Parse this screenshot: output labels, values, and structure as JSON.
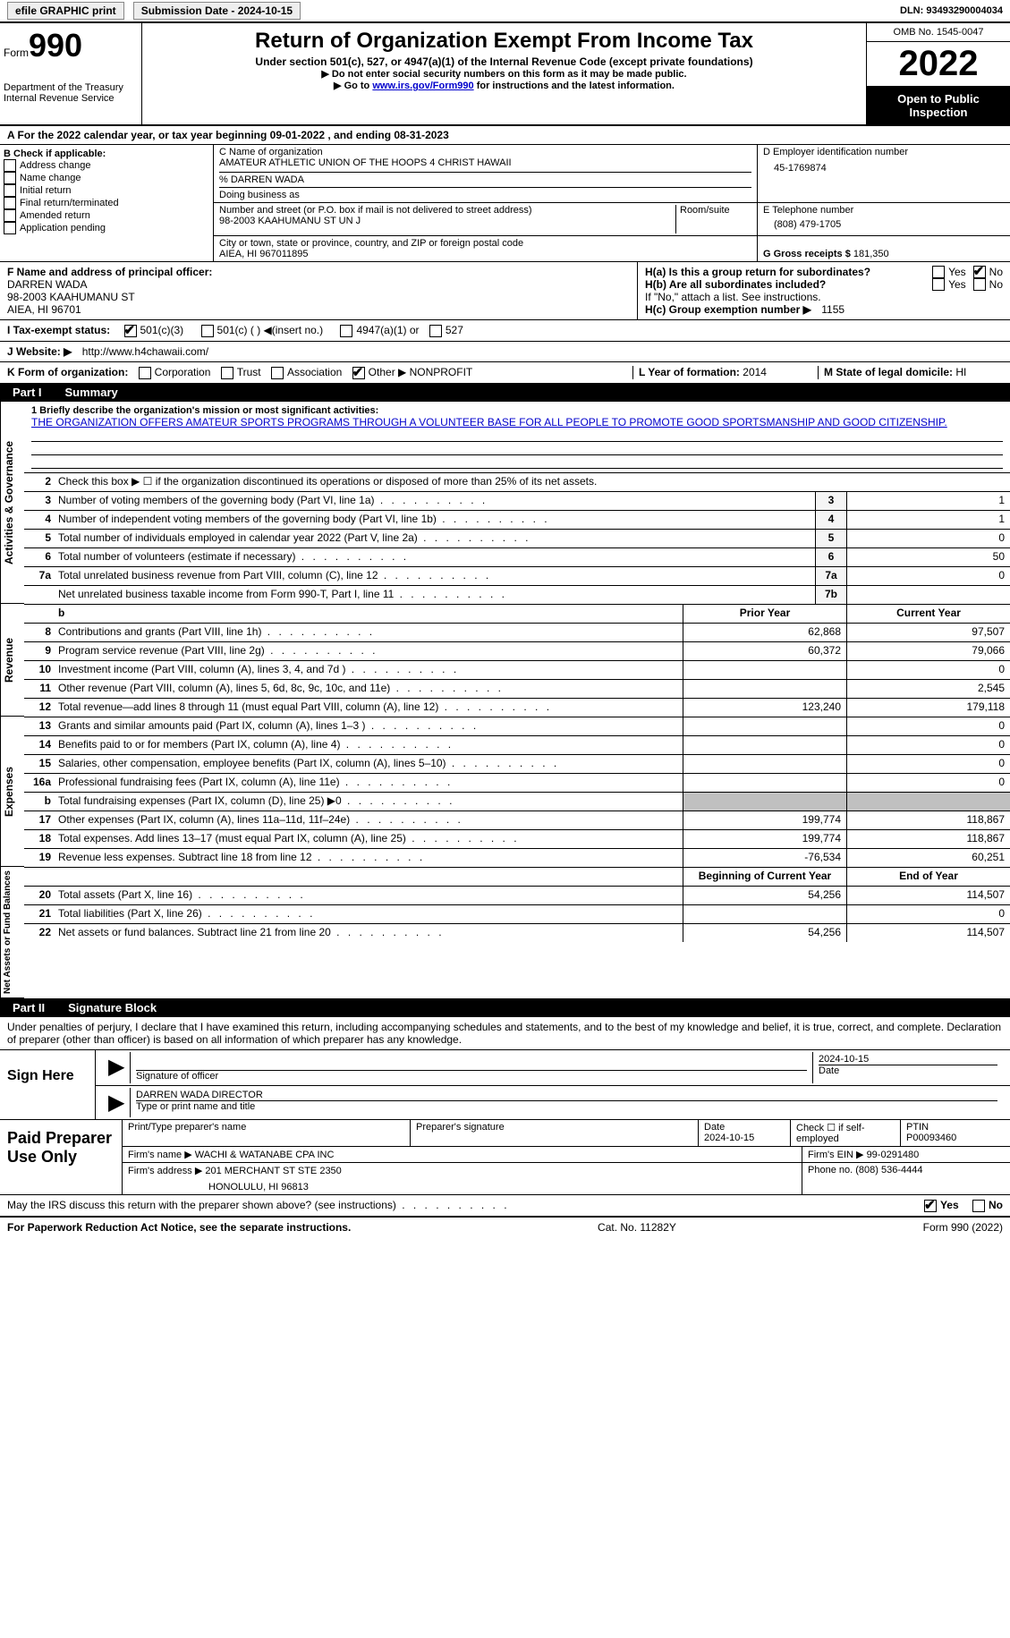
{
  "top": {
    "efile": "efile GRAPHIC print",
    "sub_label": "Submission Date - 2024-10-15",
    "dln": "DLN: 93493290004034"
  },
  "header": {
    "form_label": "Form",
    "form_num": "990",
    "dept": "Department of the Treasury",
    "irs": "Internal Revenue Service",
    "title": "Return of Organization Exempt From Income Tax",
    "sub": "Under section 501(c), 527, or 4947(a)(1) of the Internal Revenue Code (except private foundations)",
    "note1": "▶ Do not enter social security numbers on this form as it may be made public.",
    "note2_pre": "▶ Go to ",
    "note2_link": "www.irs.gov/Form990",
    "note2_post": " for instructions and the latest information.",
    "omb": "OMB No. 1545-0047",
    "year": "2022",
    "open": "Open to Public Inspection"
  },
  "row_a": "A For the 2022 calendar year, or tax year beginning 09-01-2022    , and ending 08-31-2023",
  "col_b": {
    "label": "B Check if applicable:",
    "opts": [
      "Address change",
      "Name change",
      "Initial return",
      "Final return/terminated",
      "Amended return",
      "Application pending"
    ]
  },
  "col_c": {
    "name_label": "C Name of organization",
    "name": "AMATEUR ATHLETIC UNION OF THE HOOPS 4 CHRIST HAWAII",
    "care_of": "% DARREN WADA",
    "dba_label": "Doing business as",
    "addr_label": "Number and street (or P.O. box if mail is not delivered to street address)",
    "room_label": "Room/suite",
    "addr": "98-2003 KAAHUMANU ST UN J",
    "city_label": "City or town, state or province, country, and ZIP or foreign postal code",
    "city": "AIEA, HI  967011895"
  },
  "col_d": {
    "ein_label": "D Employer identification number",
    "ein": "45-1769874",
    "tel_label": "E Telephone number",
    "tel": "(808) 479-1705",
    "gross_label": "G Gross receipts $",
    "gross": "181,350"
  },
  "f": {
    "label": "F  Name and address of principal officer:",
    "name": "DARREN WADA",
    "addr": "98-2003 KAAHUMANU ST",
    "city": "AIEA, HI  96701"
  },
  "h": {
    "ha": "H(a)  Is this a group return for subordinates?",
    "hb": "H(b)  Are all subordinates included?",
    "hb_note": "If \"No,\" attach a list. See instructions.",
    "hc": "H(c)  Group exemption number ▶",
    "hc_val": "1155"
  },
  "i": {
    "label": "I   Tax-exempt status:",
    "o1": "501(c)(3)",
    "o2": "501(c) (   ) ◀(insert no.)",
    "o3": "4947(a)(1) or",
    "o4": "527"
  },
  "j": {
    "label": "J   Website: ▶",
    "url": "http://www.h4chawaii.com/"
  },
  "k": {
    "label": "K Form of organization:",
    "opts": [
      "Corporation",
      "Trust",
      "Association"
    ],
    "other_label": "Other ▶",
    "other_val": "NONPROFIT"
  },
  "l": {
    "label": "L Year of formation:",
    "val": "2014"
  },
  "m": {
    "label": "M State of legal domicile:",
    "val": "HI"
  },
  "part1": {
    "label": "Part I",
    "title": "Summary"
  },
  "summary": {
    "vlabel1": "Activities & Governance",
    "vlabel2": "Revenue",
    "vlabel3": "Expenses",
    "vlabel4": "Net Assets or Fund Balances",
    "line1_label": "1   Briefly describe the organization's mission or most significant activities:",
    "mission": "THE ORGANIZATION OFFERS AMATEUR SPORTS PROGRAMS THROUGH A VOLUNTEER BASE FOR ALL PEOPLE TO PROMOTE GOOD SPORTSMANSHIP AND GOOD CITIZENSHIP.",
    "line2": "Check this box ▶ ☐  if the organization discontinued its operations or disposed of more than 25% of its net assets.",
    "lines_gov": [
      {
        "n": "3",
        "d": "Number of voting members of the governing body (Part VI, line 1a)",
        "box": "3",
        "v": "1"
      },
      {
        "n": "4",
        "d": "Number of independent voting members of the governing body (Part VI, line 1b)",
        "box": "4",
        "v": "1"
      },
      {
        "n": "5",
        "d": "Total number of individuals employed in calendar year 2022 (Part V, line 2a)",
        "box": "5",
        "v": "0"
      },
      {
        "n": "6",
        "d": "Total number of volunteers (estimate if necessary)",
        "box": "6",
        "v": "50"
      },
      {
        "n": "7a",
        "d": "Total unrelated business revenue from Part VIII, column (C), line 12",
        "box": "7a",
        "v": "0"
      },
      {
        "n": "",
        "d": "Net unrelated business taxable income from Form 990-T, Part I, line 11",
        "box": "7b",
        "v": ""
      }
    ],
    "col_headers": {
      "prior": "Prior Year",
      "current": "Current Year"
    },
    "lines_rev": [
      {
        "n": "8",
        "d": "Contributions and grants (Part VIII, line 1h)",
        "p": "62,868",
        "c": "97,507"
      },
      {
        "n": "9",
        "d": "Program service revenue (Part VIII, line 2g)",
        "p": "60,372",
        "c": "79,066"
      },
      {
        "n": "10",
        "d": "Investment income (Part VIII, column (A), lines 3, 4, and 7d )",
        "p": "",
        "c": "0"
      },
      {
        "n": "11",
        "d": "Other revenue (Part VIII, column (A), lines 5, 6d, 8c, 9c, 10c, and 11e)",
        "p": "",
        "c": "2,545"
      },
      {
        "n": "12",
        "d": "Total revenue—add lines 8 through 11 (must equal Part VIII, column (A), line 12)",
        "p": "123,240",
        "c": "179,118"
      }
    ],
    "lines_exp": [
      {
        "n": "13",
        "d": "Grants and similar amounts paid (Part IX, column (A), lines 1–3 )",
        "p": "",
        "c": "0"
      },
      {
        "n": "14",
        "d": "Benefits paid to or for members (Part IX, column (A), line 4)",
        "p": "",
        "c": "0"
      },
      {
        "n": "15",
        "d": "Salaries, other compensation, employee benefits (Part IX, column (A), lines 5–10)",
        "p": "",
        "c": "0"
      },
      {
        "n": "16a",
        "d": "Professional fundraising fees (Part IX, column (A), line 11e)",
        "p": "",
        "c": "0"
      },
      {
        "n": "b",
        "d": "Total fundraising expenses (Part IX, column (D), line 25) ▶0",
        "p": "grey",
        "c": "grey"
      },
      {
        "n": "17",
        "d": "Other expenses (Part IX, column (A), lines 11a–11d, 11f–24e)",
        "p": "199,774",
        "c": "118,867"
      },
      {
        "n": "18",
        "d": "Total expenses. Add lines 13–17 (must equal Part IX, column (A), line 25)",
        "p": "199,774",
        "c": "118,867"
      },
      {
        "n": "19",
        "d": "Revenue less expenses. Subtract line 18 from line 12",
        "p": "-76,534",
        "c": "60,251"
      }
    ],
    "col_headers2": {
      "begin": "Beginning of Current Year",
      "end": "End of Year"
    },
    "lines_net": [
      {
        "n": "20",
        "d": "Total assets (Part X, line 16)",
        "p": "54,256",
        "c": "114,507"
      },
      {
        "n": "21",
        "d": "Total liabilities (Part X, line 26)",
        "p": "",
        "c": "0"
      },
      {
        "n": "22",
        "d": "Net assets or fund balances. Subtract line 21 from line 20",
        "p": "54,256",
        "c": "114,507"
      }
    ]
  },
  "part2": {
    "label": "Part II",
    "title": "Signature Block"
  },
  "sig": {
    "declare": "Under penalties of perjury, I declare that I have examined this return, including accompanying schedules and statements, and to the best of my knowledge and belief, it is true, correct, and complete. Declaration of preparer (other than officer) is based on all information of which preparer has any knowledge.",
    "sign_here": "Sign Here",
    "sig_officer": "Signature of officer",
    "sig_date": "2024-10-15",
    "date_label": "Date",
    "name_title": "DARREN WADA  DIRECTOR",
    "name_title_label": "Type or print name and title"
  },
  "paid": {
    "label": "Paid Preparer Use Only",
    "h1": "Print/Type preparer's name",
    "h2": "Preparer's signature",
    "h3_label": "Date",
    "h3": "2024-10-15",
    "h4_label": "Check ☐ if self-employed",
    "h5_label": "PTIN",
    "h5": "P00093460",
    "firm_label": "Firm's name    ▶",
    "firm": "WACHI & WATANABE CPA INC",
    "ein_label": "Firm's EIN ▶",
    "ein": "99-0291480",
    "addr_label": "Firm's address ▶",
    "addr1": "201 MERCHANT ST STE 2350",
    "addr2": "HONOLULU, HI  96813",
    "phone_label": "Phone no.",
    "phone": "(808) 536-4444"
  },
  "irs_discuss": {
    "q": "May the IRS discuss this return with the preparer shown above? (see instructions)",
    "yes": "Yes",
    "no": "No"
  },
  "footer": {
    "left": "For Paperwork Reduction Act Notice, see the separate instructions.",
    "mid": "Cat. No. 11282Y",
    "right": "Form 990 (2022)"
  }
}
